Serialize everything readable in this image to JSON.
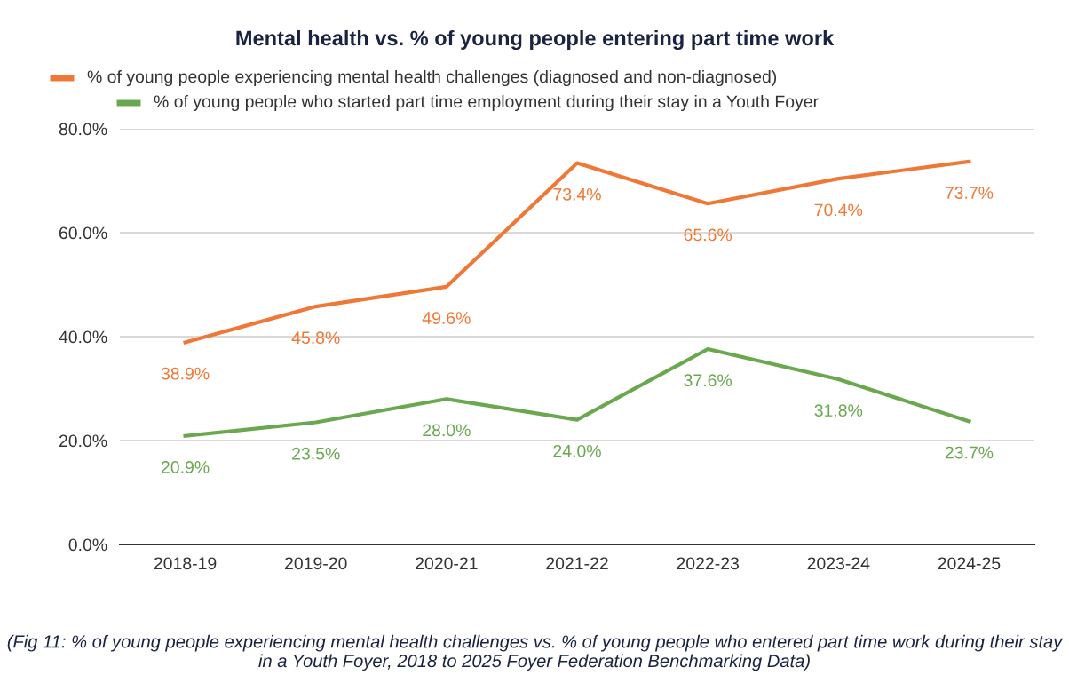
{
  "chart_data": {
    "type": "line",
    "title": "Mental health vs. % of young people entering part time work",
    "categories": [
      "2018-19",
      "2019-20",
      "2020-21",
      "2021-22",
      "2022-23",
      "2023-24",
      "2024-25"
    ],
    "series": [
      {
        "name": "% of young people experiencing mental health challenges (diagnosed and non-diagnosed)",
        "color": "#f07836",
        "values": [
          38.9,
          45.8,
          49.6,
          73.4,
          65.6,
          70.4,
          73.7
        ],
        "value_labels": [
          "38.9%",
          "45.8%",
          "49.6%",
          "73.4%",
          "65.6%",
          "70.4%",
          "73.7%"
        ]
      },
      {
        "name": "% of young people who started part time employment during their stay in a Youth Foyer",
        "color": "#6aa84f",
        "values": [
          20.9,
          23.5,
          28.0,
          24.0,
          37.6,
          31.8,
          23.7
        ],
        "value_labels": [
          "20.9%",
          "23.5%",
          "28.0%",
          "24.0%",
          "37.6%",
          "31.8%",
          "23.7%"
        ]
      }
    ],
    "ylim": [
      0,
      80
    ],
    "yticks": [
      {
        "value": 0,
        "label": "0.0%"
      },
      {
        "value": 20,
        "label": "20.0%"
      },
      {
        "value": 40,
        "label": "40.0%"
      },
      {
        "value": 60,
        "label": "60.0%"
      },
      {
        "value": 80,
        "label": "80.0%"
      }
    ],
    "grid": "y",
    "legend": "top",
    "marker": "none",
    "line_style": "solid",
    "annotations": [
      "(Fig 11: % of young people experiencing mental health challenges vs. % of young people who entered part time work during their stay in a Youth Foyer, 2018 to 2025 Foyer Federation Benchmarking Data)"
    ]
  }
}
